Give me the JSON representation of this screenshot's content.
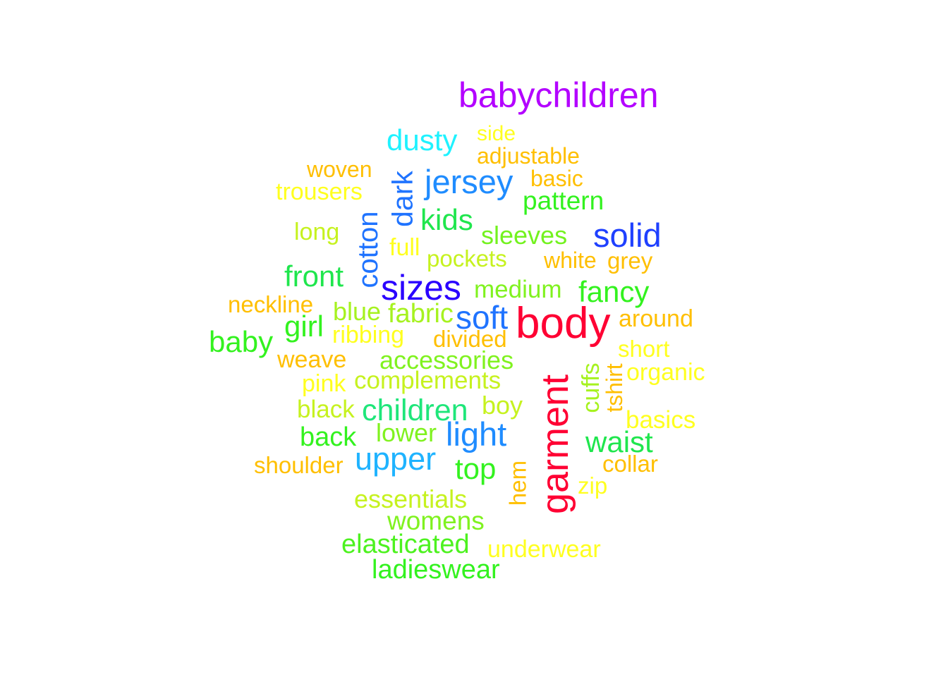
{
  "words": [
    {
      "text": "babychildren",
      "color": "#b300ff"
    },
    {
      "text": "dusty",
      "color": "#1ff2ff"
    },
    {
      "text": "side",
      "color": "#ffff1f"
    },
    {
      "text": "adjustable",
      "color": "#ffbf00"
    },
    {
      "text": "woven",
      "color": "#ffbf00"
    },
    {
      "text": "jersey",
      "color": "#1f8cff"
    },
    {
      "text": "basic",
      "color": "#ffbf00"
    },
    {
      "text": "trousers",
      "color": "#ffff1f"
    },
    {
      "text": "dark",
      "color": "#1f73ff"
    },
    {
      "text": "pattern",
      "color": "#33f21f"
    },
    {
      "text": "kids",
      "color": "#1fe64d"
    },
    {
      "text": "long",
      "color": "#c6f21f"
    },
    {
      "text": "cotton",
      "color": "#1f73ff"
    },
    {
      "text": "sleeves",
      "color": "#73f21f"
    },
    {
      "text": "solid",
      "color": "#1f40ff"
    },
    {
      "text": "full",
      "color": "#ffff1f"
    },
    {
      "text": "pockets",
      "color": "#c6f21f"
    },
    {
      "text": "white",
      "color": "#ffbf00"
    },
    {
      "text": "grey",
      "color": "#ffbf00"
    },
    {
      "text": "front",
      "color": "#1fe64d"
    },
    {
      "text": "sizes",
      "color": "#2a00ff"
    },
    {
      "text": "medium",
      "color": "#80f21f"
    },
    {
      "text": "fancy",
      "color": "#33f21f"
    },
    {
      "text": "neckline",
      "color": "#ffbf00"
    },
    {
      "text": "blue",
      "color": "#a6f21f"
    },
    {
      "text": "fabric",
      "color": "#a6f21f"
    },
    {
      "text": "soft",
      "color": "#1f73ff"
    },
    {
      "text": "body",
      "color": "#ff0033"
    },
    {
      "text": "around",
      "color": "#ffbf00"
    },
    {
      "text": "baby",
      "color": "#33f21f"
    },
    {
      "text": "girl",
      "color": "#33f21f"
    },
    {
      "text": "ribbing",
      "color": "#ffff1f"
    },
    {
      "text": "divided",
      "color": "#ffbf00"
    },
    {
      "text": "short",
      "color": "#ffff1f"
    },
    {
      "text": "weave",
      "color": "#ffbf00"
    },
    {
      "text": "accessories",
      "color": "#80f21f"
    },
    {
      "text": "organic",
      "color": "#ffff1f"
    },
    {
      "text": "pink",
      "color": "#ffff1f"
    },
    {
      "text": "complements",
      "color": "#c6f21f"
    },
    {
      "text": "garment",
      "color": "#ff0033"
    },
    {
      "text": "cuffs",
      "color": "#a6f21f"
    },
    {
      "text": "tshirt",
      "color": "#ffbf00"
    },
    {
      "text": "black",
      "color": "#c6f21f"
    },
    {
      "text": "children",
      "color": "#1fe67a"
    },
    {
      "text": "boy",
      "color": "#c6f21f"
    },
    {
      "text": "basics",
      "color": "#ffff1f"
    },
    {
      "text": "back",
      "color": "#33f21f"
    },
    {
      "text": "lower",
      "color": "#80f21f"
    },
    {
      "text": "light",
      "color": "#1f8cff"
    },
    {
      "text": "waist",
      "color": "#1fe64d"
    },
    {
      "text": "shoulder",
      "color": "#ffbf00"
    },
    {
      "text": "upper",
      "color": "#1fb3ff"
    },
    {
      "text": "top",
      "color": "#33f21f"
    },
    {
      "text": "collar",
      "color": "#ffbf00"
    },
    {
      "text": "hem",
      "color": "#ffbf00"
    },
    {
      "text": "zip",
      "color": "#ffff1f"
    },
    {
      "text": "essentials",
      "color": "#c6f21f"
    },
    {
      "text": "womens",
      "color": "#80f21f"
    },
    {
      "text": "elasticated",
      "color": "#4df21f"
    },
    {
      "text": "underwear",
      "color": "#ffff1f"
    },
    {
      "text": "ladieswear",
      "color": "#33f21f"
    }
  ]
}
